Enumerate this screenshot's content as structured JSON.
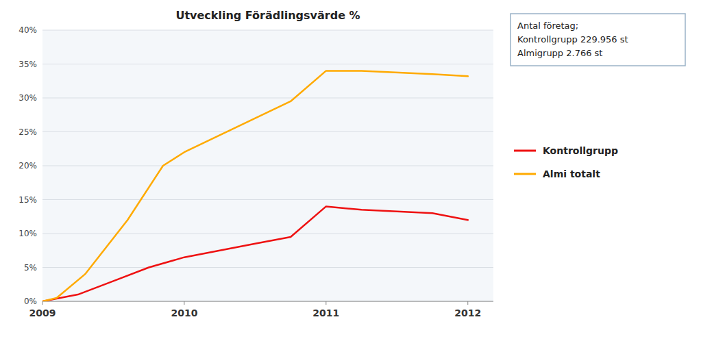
{
  "chart_data": {
    "type": "line",
    "title": "Utveckling  Förädlingsvärde %",
    "series": [
      {
        "name": "Kontrollgrupp",
        "color": "#ee1111",
        "x": [
          2009.0,
          2009.25,
          2009.5,
          2009.75,
          2010.0,
          2010.25,
          2010.5,
          2010.75,
          2011.0,
          2011.25,
          2011.75,
          2012.0
        ],
        "values": [
          0.0,
          0.01,
          0.03,
          0.05,
          0.065,
          0.075,
          0.085,
          0.095,
          0.14,
          0.135,
          0.13,
          0.12
        ]
      },
      {
        "name": "Almi totalt",
        "color": "#ffaa00",
        "x": [
          2009.0,
          2009.1,
          2009.3,
          2009.6,
          2009.85,
          2010.0,
          2010.25,
          2010.5,
          2010.75,
          2011.0,
          2011.25,
          2011.75,
          2012.0
        ],
        "values": [
          0.0,
          0.005,
          0.04,
          0.12,
          0.2,
          0.22,
          0.245,
          0.27,
          0.295,
          0.34,
          0.34,
          0.335,
          0.332
        ]
      }
    ],
    "xlim": [
      2009.0,
      2012.18
    ],
    "xticks": [
      2009,
      2010,
      2011,
      2012
    ],
    "ylim": [
      0.0,
      0.4
    ],
    "yticks": [
      {
        "value": 0.0,
        "label": "0%"
      },
      {
        "value": 0.05,
        "label": "5%"
      },
      {
        "value": 0.1,
        "label": "10%"
      },
      {
        "value": 0.15,
        "label": "15%"
      },
      {
        "value": 0.2,
        "label": "20%"
      },
      {
        "value": 0.25,
        "label": "25%"
      },
      {
        "value": 0.3,
        "label": "30%"
      },
      {
        "value": 0.35,
        "label": "35%"
      },
      {
        "value": 0.4,
        "label": "40%"
      }
    ],
    "grid": true,
    "legend": "right",
    "annotations": [
      "Antal företag;",
      "Kontrollgrupp 229.956 st",
      "Almigrupp 2.766 st"
    ]
  }
}
